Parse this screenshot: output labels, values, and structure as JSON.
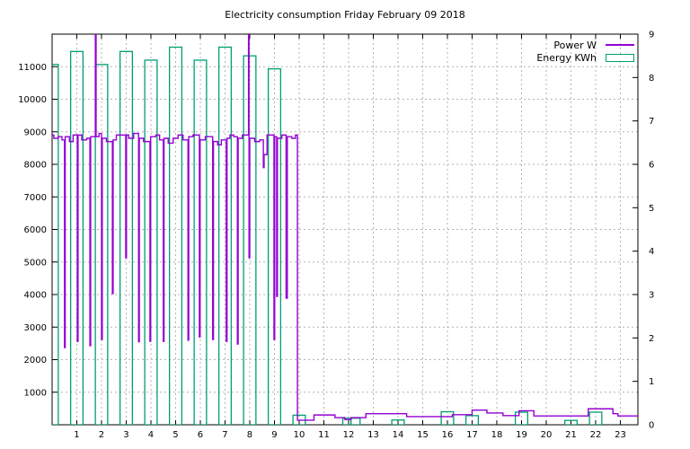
{
  "chart_data": {
    "type": "mixed",
    "title": "Electricity consumption Friday February 09 2018",
    "grid": true,
    "legend": {
      "position": "top-right",
      "entries": [
        {
          "label": "Power W",
          "color": "#9400d3",
          "sample": "line"
        },
        {
          "label": "Energy KWh",
          "color": "#009e73",
          "sample": "box"
        }
      ]
    },
    "x_axis": {
      "min": 0,
      "max": 23.71,
      "ticks": [
        1,
        2,
        3,
        4,
        5,
        6,
        7,
        8,
        9,
        10,
        11,
        12,
        13,
        14,
        15,
        16,
        17,
        18,
        19,
        20,
        21,
        22,
        23
      ]
    },
    "y_axis_left": {
      "min": 0,
      "max": 12000,
      "ticks": [
        1000,
        2000,
        3000,
        4000,
        5000,
        6000,
        7000,
        8000,
        9000,
        10000,
        11000
      ]
    },
    "y_axis_right": {
      "min": 0,
      "max": 9,
      "ticks": [
        0,
        1,
        2,
        3,
        4,
        5,
        6,
        7,
        8,
        9
      ]
    },
    "series": [
      {
        "name": "Power W",
        "type": "steps",
        "axis": "left",
        "color": "#9400d3",
        "points": [
          [
            0.0,
            8900
          ],
          [
            0.07,
            8800
          ],
          [
            0.25,
            8850
          ],
          [
            0.4,
            8750
          ],
          [
            0.5,
            2370
          ],
          [
            0.53,
            8850
          ],
          [
            0.7,
            8700
          ],
          [
            0.85,
            8900
          ],
          [
            1.02,
            2560
          ],
          [
            1.05,
            8900
          ],
          [
            1.2,
            8750
          ],
          [
            1.4,
            8800
          ],
          [
            1.53,
            2430
          ],
          [
            1.56,
            8850
          ],
          [
            1.75,
            12100
          ],
          [
            1.78,
            8850
          ],
          [
            1.9,
            8950
          ],
          [
            2.0,
            2620
          ],
          [
            2.03,
            8800
          ],
          [
            2.2,
            8700
          ],
          [
            2.44,
            4030
          ],
          [
            2.47,
            8750
          ],
          [
            2.6,
            8900
          ],
          [
            2.98,
            5130
          ],
          [
            3.01,
            8900
          ],
          [
            3.1,
            8800
          ],
          [
            3.3,
            8950
          ],
          [
            3.5,
            2550
          ],
          [
            3.53,
            8800
          ],
          [
            3.7,
            8700
          ],
          [
            3.96,
            2565
          ],
          [
            3.99,
            8850
          ],
          [
            4.2,
            8900
          ],
          [
            4.35,
            8750
          ],
          [
            4.5,
            2560
          ],
          [
            4.53,
            8800
          ],
          [
            4.7,
            8650
          ],
          [
            4.9,
            8800
          ],
          [
            5.1,
            8900
          ],
          [
            5.3,
            8750
          ],
          [
            5.5,
            2600
          ],
          [
            5.53,
            8850
          ],
          [
            5.7,
            8900
          ],
          [
            5.96,
            2700
          ],
          [
            5.99,
            8750
          ],
          [
            6.2,
            8850
          ],
          [
            6.5,
            2620
          ],
          [
            6.53,
            8700
          ],
          [
            6.7,
            8600
          ],
          [
            6.85,
            8750
          ],
          [
            7.05,
            2560
          ],
          [
            7.08,
            8800
          ],
          [
            7.2,
            8900
          ],
          [
            7.35,
            8850
          ],
          [
            7.5,
            2480
          ],
          [
            7.53,
            8800
          ],
          [
            7.7,
            8900
          ],
          [
            7.95,
            12100
          ],
          [
            7.97,
            5130
          ],
          [
            8.0,
            8800
          ],
          [
            8.2,
            8700
          ],
          [
            8.4,
            8750
          ],
          [
            8.55,
            7900
          ],
          [
            8.58,
            8300
          ],
          [
            8.7,
            8900
          ],
          [
            8.98,
            2620
          ],
          [
            9.01,
            8850
          ],
          [
            9.09,
            3945
          ],
          [
            9.12,
            8800
          ],
          [
            9.3,
            8900
          ],
          [
            9.47,
            3890
          ],
          [
            9.52,
            8850
          ],
          [
            9.7,
            8800
          ],
          [
            9.85,
            8900
          ],
          [
            9.93,
            140
          ],
          [
            10.6,
            300
          ],
          [
            11.45,
            220
          ],
          [
            11.85,
            160
          ],
          [
            12.1,
            220
          ],
          [
            12.7,
            340
          ],
          [
            14.35,
            250
          ],
          [
            16.2,
            310
          ],
          [
            17.0,
            450
          ],
          [
            17.6,
            360
          ],
          [
            18.25,
            280
          ],
          [
            18.9,
            430
          ],
          [
            19.5,
            270
          ],
          [
            21.7,
            490
          ],
          [
            22.7,
            340
          ],
          [
            22.9,
            270
          ],
          [
            23.71,
            270
          ]
        ]
      },
      {
        "name": "Energy KWh",
        "type": "boxes",
        "axis": "right",
        "color": "#009e73",
        "bars": [
          [
            0,
            8.3,
            0.5
          ],
          [
            1,
            8.6,
            0.5
          ],
          [
            2,
            8.3,
            0.5
          ],
          [
            3,
            8.6,
            0.5
          ],
          [
            4,
            8.4,
            0.5
          ],
          [
            5,
            8.7,
            0.5
          ],
          [
            6,
            8.4,
            0.5
          ],
          [
            7,
            8.7,
            0.5
          ],
          [
            8,
            8.5,
            0.5
          ],
          [
            9,
            8.2,
            0.5
          ],
          [
            10,
            0.22,
            0.5
          ],
          [
            11.93,
            0.15,
            0.33
          ],
          [
            12.28,
            0.15,
            0.37
          ],
          [
            14,
            0.11,
            0.5
          ],
          [
            16,
            0.3,
            0.5
          ],
          [
            17,
            0.21,
            0.5
          ],
          [
            19,
            0.29,
            0.5
          ],
          [
            21,
            0.1,
            0.5
          ],
          [
            22,
            0.29,
            0.5
          ]
        ]
      }
    ],
    "colors": {
      "grid": "#b4b4b4",
      "axis": "#000000",
      "background": "#ffffff"
    }
  }
}
